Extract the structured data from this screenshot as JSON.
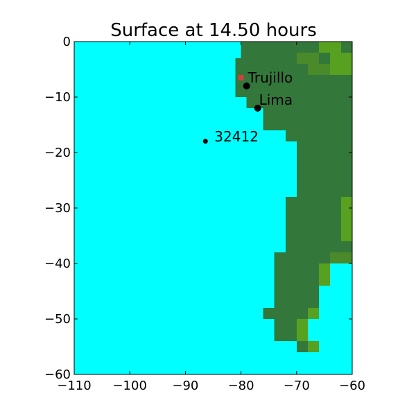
{
  "chart_data": {
    "type": "heatmap",
    "title": "Surface at 14.50 hours",
    "xlabel": "",
    "ylabel": "",
    "xlim": [
      -110,
      -60
    ],
    "ylim": [
      -60,
      0
    ],
    "x_ticks": [
      -110,
      -100,
      -90,
      -80,
      -70,
      -60
    ],
    "y_ticks": [
      0,
      -10,
      -20,
      -30,
      -40,
      -50,
      -60
    ],
    "x_tick_labels": [
      "−110",
      "−100",
      "−90",
      "−80",
      "−70",
      "−60"
    ],
    "y_tick_labels": [
      "0",
      "−10",
      "−20",
      "−30",
      "−40",
      "−50",
      "−60"
    ],
    "grid": false,
    "colors": {
      "ocean": "#00ffff",
      "land": "#33783a",
      "highland": "#58a020",
      "highland_dark": "#4a8a2a",
      "wave": "#d04040",
      "point": "#000000"
    },
    "land_cells": [
      {
        "x0": -80,
        "x1": -60,
        "y0": -3,
        "y1": 0
      },
      {
        "x0": -81,
        "x1": -60,
        "y0": -10,
        "y1": -3
      },
      {
        "x0": -79,
        "x1": -60,
        "y0": -12,
        "y1": -10
      },
      {
        "x0": -76,
        "x1": -60,
        "y0": -16,
        "y1": -12
      },
      {
        "x0": -72,
        "x1": -60,
        "y0": -18,
        "y1": -16
      },
      {
        "x0": -70,
        "x1": -60,
        "y0": -28,
        "y1": -18
      },
      {
        "x0": -72,
        "x1": -60,
        "y0": -38,
        "y1": -28
      },
      {
        "x0": -74,
        "x1": -60,
        "y0": -40,
        "y1": -38
      },
      {
        "x0": -74,
        "x1": -64,
        "y0": -44,
        "y1": -40
      },
      {
        "x0": -74,
        "x1": -66,
        "y0": -48,
        "y1": -44
      },
      {
        "x0": -76,
        "x1": -66,
        "y0": -50,
        "y1": -48
      },
      {
        "x0": -74,
        "x1": -68,
        "y0": -54,
        "y1": -50
      },
      {
        "x0": -70,
        "x1": -68,
        "y0": -56,
        "y1": -54
      },
      {
        "x0": -68,
        "x1": -66,
        "y0": -56,
        "y1": -54
      }
    ],
    "highland_cells": [
      {
        "x0": -66,
        "x1": -62,
        "y0": -2,
        "y1": 0,
        "tone": "highland"
      },
      {
        "x0": -64,
        "x1": -60,
        "y0": -6,
        "y1": -2,
        "tone": "highland"
      },
      {
        "x0": -70,
        "x1": -66,
        "y0": -4,
        "y1": -2,
        "tone": "highland_dark"
      },
      {
        "x0": -68,
        "x1": -64,
        "y0": -6,
        "y1": -4,
        "tone": "highland_dark"
      },
      {
        "x0": -62,
        "x1": -60,
        "y0": -36,
        "y1": -28,
        "tone": "highland"
      },
      {
        "x0": -64,
        "x1": -60,
        "y0": -40,
        "y1": -38,
        "tone": "highland_dark"
      },
      {
        "x0": -66,
        "x1": -64,
        "y0": -44,
        "y1": -40,
        "tone": "highland"
      },
      {
        "x0": -68,
        "x1": -66,
        "y0": -50,
        "y1": -48,
        "tone": "highland"
      },
      {
        "x0": -70,
        "x1": -68,
        "y0": -54,
        "y1": -50,
        "tone": "highland"
      },
      {
        "x0": -68,
        "x1": -66,
        "y0": -56,
        "y1": -54,
        "tone": "highland"
      }
    ],
    "wave_cells": [
      {
        "x0": -80.5,
        "x1": -79.5,
        "y0": -7,
        "y1": -6
      }
    ],
    "points": [
      {
        "name": "Trujillo",
        "lon": -79.0,
        "lat": -8.0,
        "size": "large"
      },
      {
        "name": "Lima",
        "lon": -77.0,
        "lat": -12.0,
        "size": "large"
      },
      {
        "name": "32412",
        "lon": -86.4,
        "lat": -17.97,
        "size": "small"
      }
    ]
  }
}
